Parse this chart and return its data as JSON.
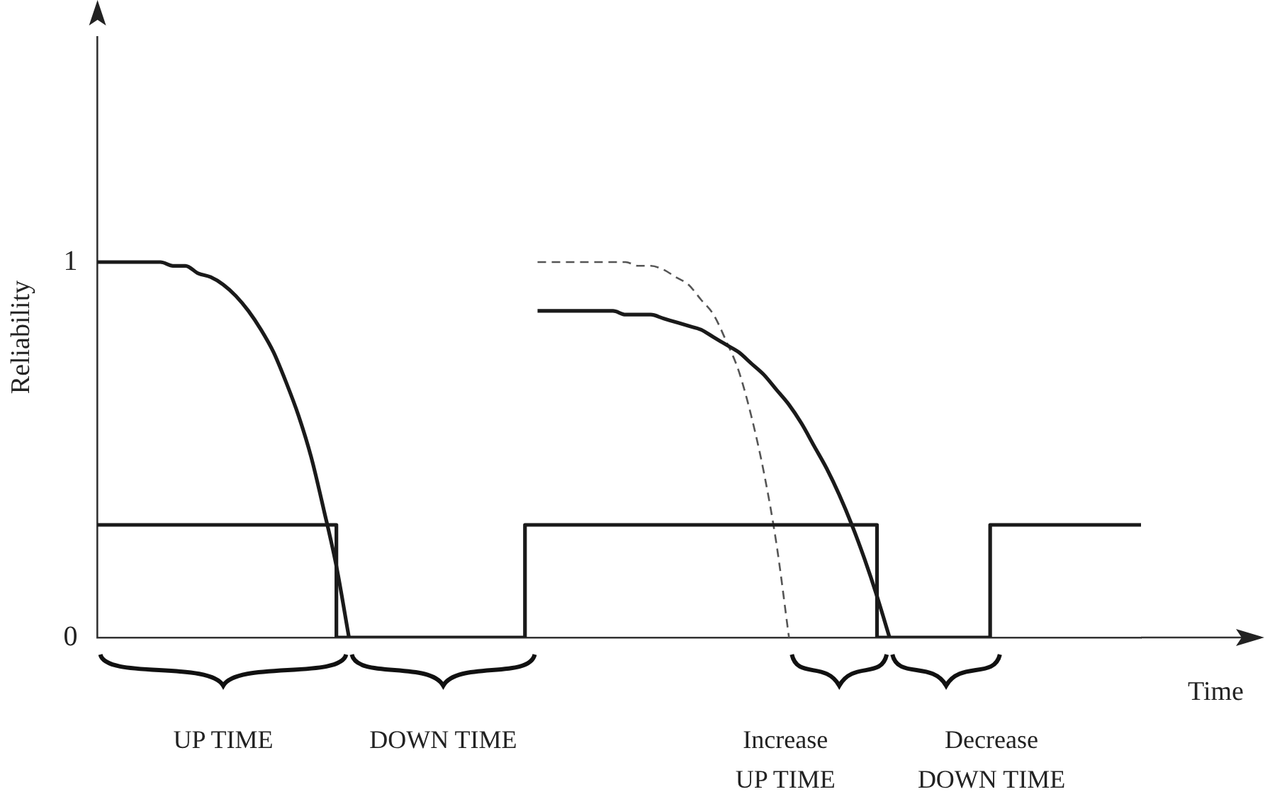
{
  "chart_data": {
    "type": "line",
    "ylabel": "Reliability",
    "xlabel": "Time",
    "categories": [
      null,
      null,
      null,
      null,
      null,
      null,
      null,
      null,
      null,
      null,
      null,
      null,
      null,
      null,
      null,
      null,
      null,
      null,
      null,
      null,
      null,
      null,
      null,
      null,
      null,
      null,
      null,
      null,
      null,
      null,
      null,
      null,
      null,
      null,
      null,
      null,
      null,
      null,
      null,
      null,
      null,
      null,
      null,
      null,
      null,
      null,
      null,
      null,
      null,
      null,
      null,
      null,
      null,
      null,
      null,
      null,
      null,
      null,
      null,
      null,
      null,
      null,
      null,
      null,
      null,
      null,
      null,
      null,
      null,
      null,
      null,
      null,
      null,
      null,
      null,
      null,
      null,
      null,
      null,
      null,
      null,
      null,
      null,
      null
    ],
    "series": [
      {
        "type": "line",
        "color": "#1a1a1a",
        "line_style": "solid",
        "values": [
          1,
          1,
          1,
          1,
          1,
          1,
          0.99,
          0.99,
          0.97,
          0.96,
          0.94,
          0.91,
          0.87,
          0.82,
          0.76,
          0.68,
          0.59,
          0.48,
          0.34,
          0.19,
          0,
          null,
          null,
          null,
          null,
          null,
          null,
          null,
          null,
          null,
          null,
          null,
          null,
          null,
          null,
          null,
          null,
          null,
          null,
          null,
          null,
          null,
          null,
          null,
          null,
          null,
          null,
          null,
          null,
          null,
          null,
          null,
          null,
          null,
          null,
          null,
          null,
          null,
          null,
          null,
          null,
          null,
          null,
          null,
          null,
          null,
          null,
          null,
          null,
          null,
          null,
          null,
          null,
          null,
          null,
          null,
          null,
          null,
          null,
          null,
          null,
          null,
          null,
          null
        ]
      },
      {
        "type": "step",
        "color": "#1a1a1a",
        "line_style": "solid",
        "values": [
          0.3,
          0.3,
          0.3,
          0.3,
          0.3,
          0.3,
          0.3,
          0.3,
          0.3,
          0.3,
          0.3,
          0.3,
          0.3,
          0.3,
          0.3,
          0.3,
          0.3,
          0.3,
          0.3,
          0.3,
          0,
          0,
          0,
          0,
          0,
          0,
          0,
          0,
          0,
          0,
          0,
          0,
          0,
          0,
          0,
          0.3,
          0.3,
          0.3,
          0.3,
          0.3,
          0.3,
          0.3,
          0.3,
          0.3,
          0.3,
          0.3,
          0.3,
          0.3,
          0.3,
          0.3,
          0.3,
          0.3,
          0.3,
          0.3,
          0.3,
          0.3,
          0.3,
          0.3,
          0.3,
          0.3,
          0.3,
          0.3,
          0.3,
          0,
          0,
          0,
          0,
          0,
          0,
          0,
          0,
          0,
          0.3,
          0.3,
          0.3,
          0.3,
          0.3,
          0.3,
          0.3,
          0.3,
          0.3,
          0.3,
          0.3,
          0.3
        ]
      },
      {
        "type": "line",
        "color": "#1a1a1a",
        "line_style": "solid",
        "values": [
          null,
          null,
          null,
          null,
          null,
          null,
          null,
          null,
          null,
          null,
          null,
          null,
          null,
          null,
          null,
          null,
          null,
          null,
          null,
          null,
          null,
          null,
          null,
          null,
          null,
          null,
          null,
          null,
          null,
          null,
          null,
          null,
          null,
          null,
          null,
          0.87,
          0.87,
          0.87,
          0.87,
          0.87,
          0.87,
          0.87,
          0.86,
          0.86,
          0.86,
          0.85,
          0.84,
          0.83,
          0.82,
          0.8,
          0.78,
          0.76,
          0.73,
          0.7,
          0.66,
          0.62,
          0.57,
          0.51,
          0.45,
          0.38,
          0.3,
          0.21,
          0.11,
          0,
          null,
          null,
          null,
          null,
          null,
          null,
          null,
          null,
          null,
          null,
          null,
          null,
          null,
          null,
          null,
          null,
          null,
          null,
          null,
          null
        ]
      },
      {
        "type": "line",
        "color": "#555555",
        "line_style": "dashed",
        "values": [
          null,
          null,
          null,
          null,
          null,
          null,
          null,
          null,
          null,
          null,
          null,
          null,
          null,
          null,
          null,
          null,
          null,
          null,
          null,
          null,
          null,
          null,
          null,
          null,
          null,
          null,
          null,
          null,
          null,
          null,
          null,
          null,
          null,
          null,
          null,
          1,
          1,
          1,
          1,
          1,
          1,
          1,
          1,
          0.99,
          0.99,
          0.98,
          0.96,
          0.94,
          0.9,
          0.86,
          0.79,
          0.71,
          0.59,
          0.44,
          0.25,
          0,
          null,
          null,
          null,
          null,
          null,
          null,
          null,
          null,
          null,
          null,
          null,
          null,
          null,
          null,
          null,
          null,
          null,
          null,
          null,
          null,
          null,
          null,
          null,
          null,
          null,
          null,
          null,
          null
        ]
      }
    ],
    "ylim": [
      0,
      1.6
    ],
    "yticks": [
      0,
      1
    ],
    "tick_labels": "y",
    "grid": false,
    "legend": false,
    "marker": "none",
    "annotations": [
      "UP TIME",
      "DOWN TIME",
      "Increase UP TIME",
      "Decrease DOWN TIME"
    ]
  }
}
